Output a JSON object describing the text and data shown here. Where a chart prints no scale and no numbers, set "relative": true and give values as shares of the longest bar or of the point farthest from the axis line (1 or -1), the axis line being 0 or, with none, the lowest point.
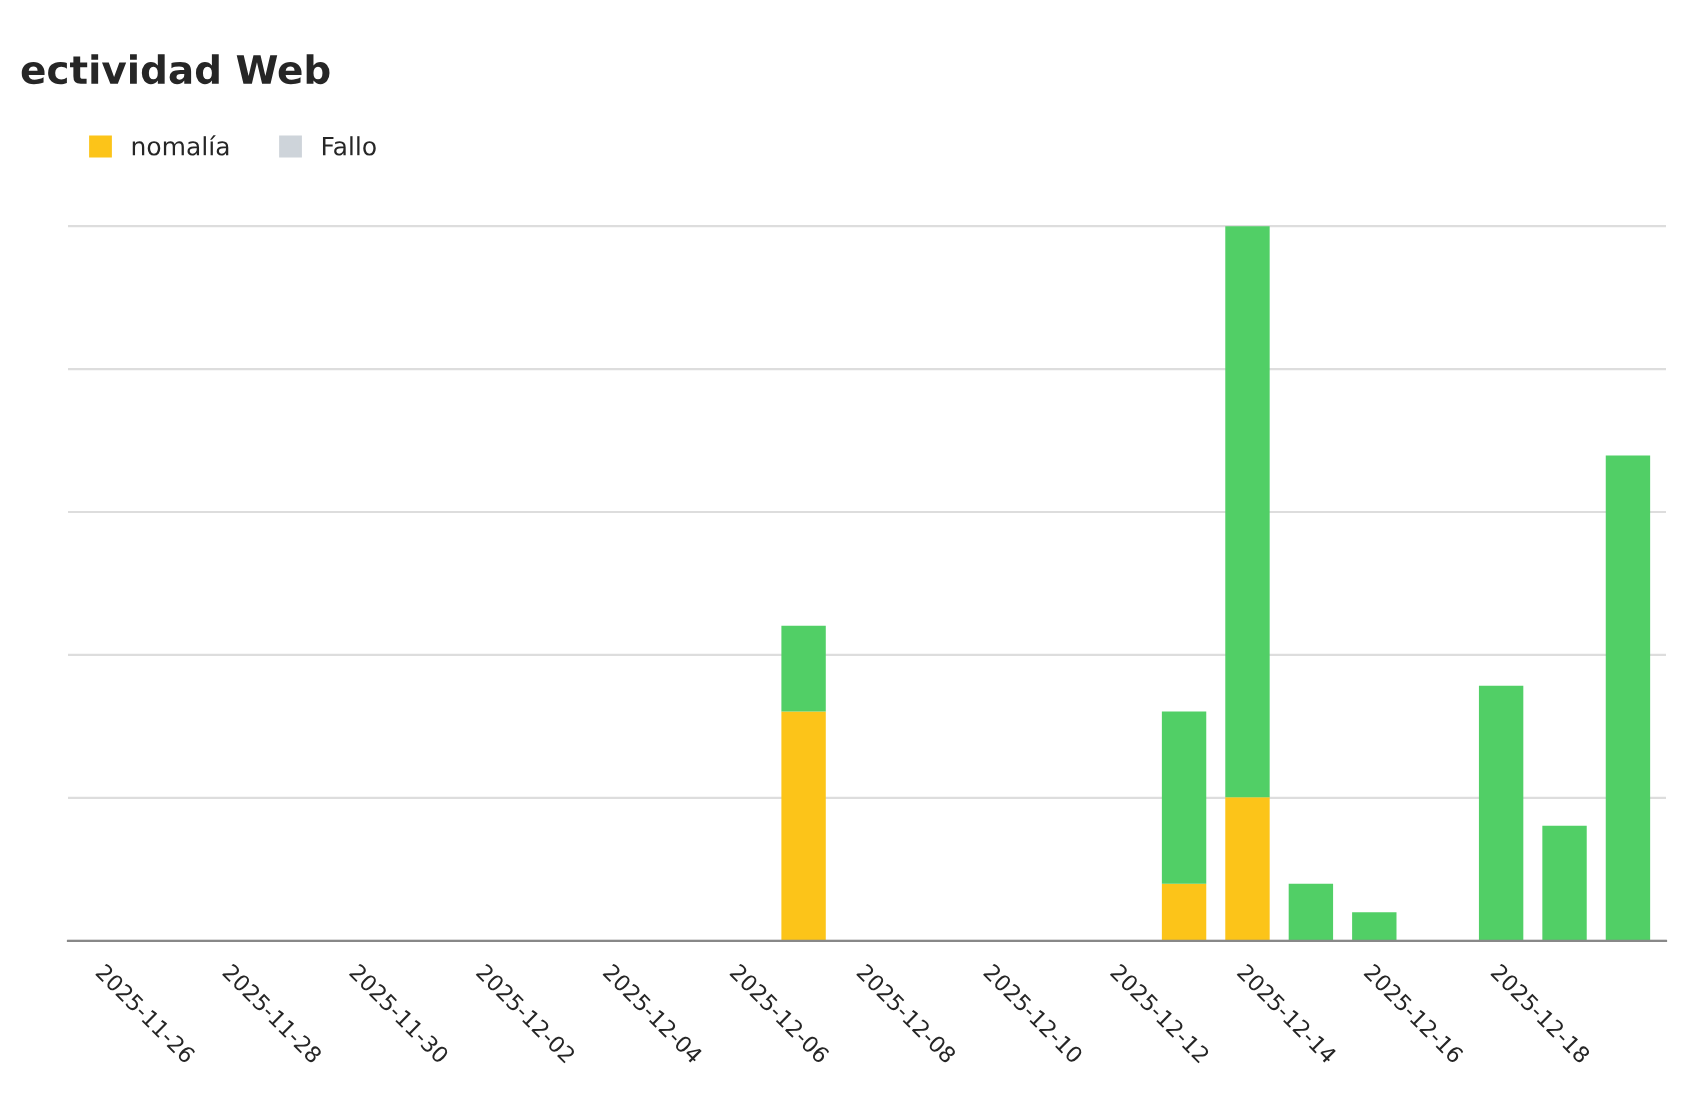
{
  "chart_data": {
    "type": "bar",
    "title": "ectividad Web",
    "relative": true,
    "stacked": true,
    "grid": "y",
    "legend": "top left",
    "categories": [
      "2025-11-26",
      null,
      "2025-11-28",
      null,
      "2025-11-30",
      null,
      "2025-12-02",
      null,
      "2025-12-04",
      null,
      "2025-12-06",
      null,
      "2025-12-08",
      null,
      "2025-12-10",
      null,
      "2025-12-12",
      null,
      "2025-12-14",
      null,
      "2025-12-16",
      null,
      "2025-12-18",
      null,
      null
    ],
    "series": [
      {
        "name": "nomalía",
        "color": "#fcc419",
        "values": [
          null,
          null,
          null,
          null,
          null,
          null,
          null,
          null,
          null,
          null,
          null,
          0.321,
          null,
          null,
          null,
          null,
          null,
          0.08,
          0.201,
          null,
          null,
          null,
          null,
          null,
          null
        ]
      },
      {
        "color": "#51cf66",
        "values": [
          null,
          null,
          null,
          null,
          null,
          null,
          null,
          null,
          null,
          null,
          null,
          0.12,
          null,
          null,
          null,
          null,
          null,
          0.241,
          0.799,
          0.08,
          0.04,
          null,
          0.357,
          0.161,
          0.679
        ]
      },
      {
        "name": "Fallo",
        "color": "#ced4da",
        "values": [
          null,
          null,
          null,
          null,
          null,
          null,
          null,
          null,
          null,
          null,
          null,
          null,
          null,
          null,
          null,
          null,
          null,
          null,
          null,
          null,
          null,
          null,
          null,
          null,
          null
        ]
      }
    ]
  }
}
